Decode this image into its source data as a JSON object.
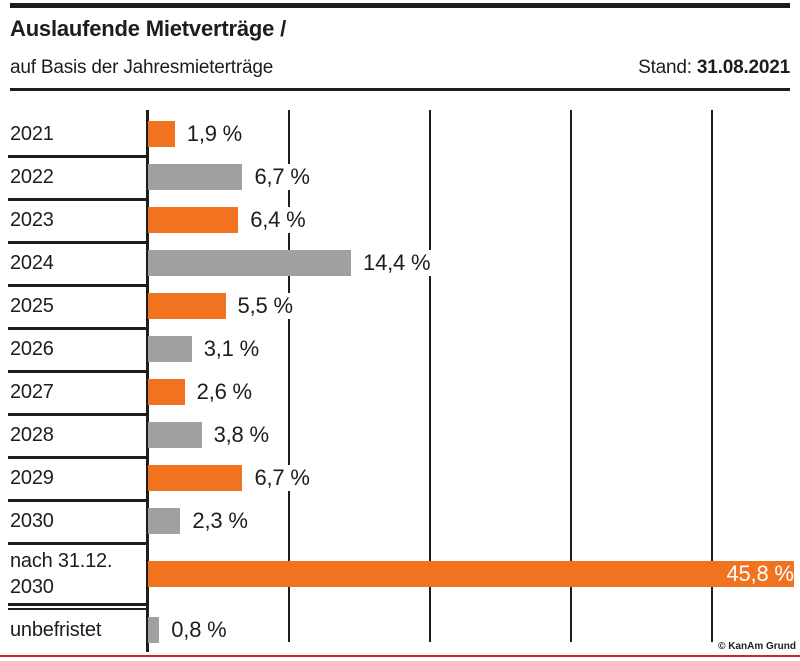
{
  "header": {
    "title": "Auslaufende Mietverträge /",
    "subtitle": "auf Basis der Jahresmieterträge",
    "stand_label": "Stand: ",
    "stand_value": "31.08.2021"
  },
  "chart_data": {
    "type": "bar",
    "orientation": "horizontal",
    "title": "Auslaufende Mietverträge / auf Basis der Jahresmieterträge",
    "categories": [
      "2021",
      "2022",
      "2023",
      "2024",
      "2025",
      "2026",
      "2027",
      "2028",
      "2029",
      "2030",
      "nach 31.12. 2030",
      "unbefristet"
    ],
    "values": [
      1.9,
      6.7,
      6.4,
      14.4,
      5.5,
      3.1,
      2.6,
      3.8,
      6.7,
      2.3,
      45.8,
      0.8
    ],
    "value_labels": [
      "1,9 %",
      "6,7 %",
      "6,4 %",
      "14,4 %",
      "5,5 %",
      "3,1 %",
      "2,6 %",
      "3,8 %",
      "6,7 %",
      "2,3 %",
      "45,8 %",
      "0,8 %"
    ],
    "bar_colors": [
      "#F1731F",
      "#9EA0A2",
      "#F1731F",
      "#9EA0A2",
      "#F1731F",
      "#9EA0A2",
      "#F1731F",
      "#9EA0A2",
      "#F1731F",
      "#9EA0A2",
      "#F1731F",
      "#9EA0A2"
    ],
    "xlim": [
      0,
      46
    ],
    "gridline_values": [
      10,
      20,
      30,
      40
    ],
    "grid": "vertical solid lines, interrupted by value labels",
    "legend": "none",
    "unit": "%"
  },
  "footer": {
    "copyright": "© KanAm Grund"
  },
  "colors": {
    "accent_orange": "#F1731F",
    "neutral_gray": "#9EA0A2",
    "ink": "#1D1D1B",
    "bottom_line_red": "#D2232A",
    "background": "#FFFFFF"
  }
}
